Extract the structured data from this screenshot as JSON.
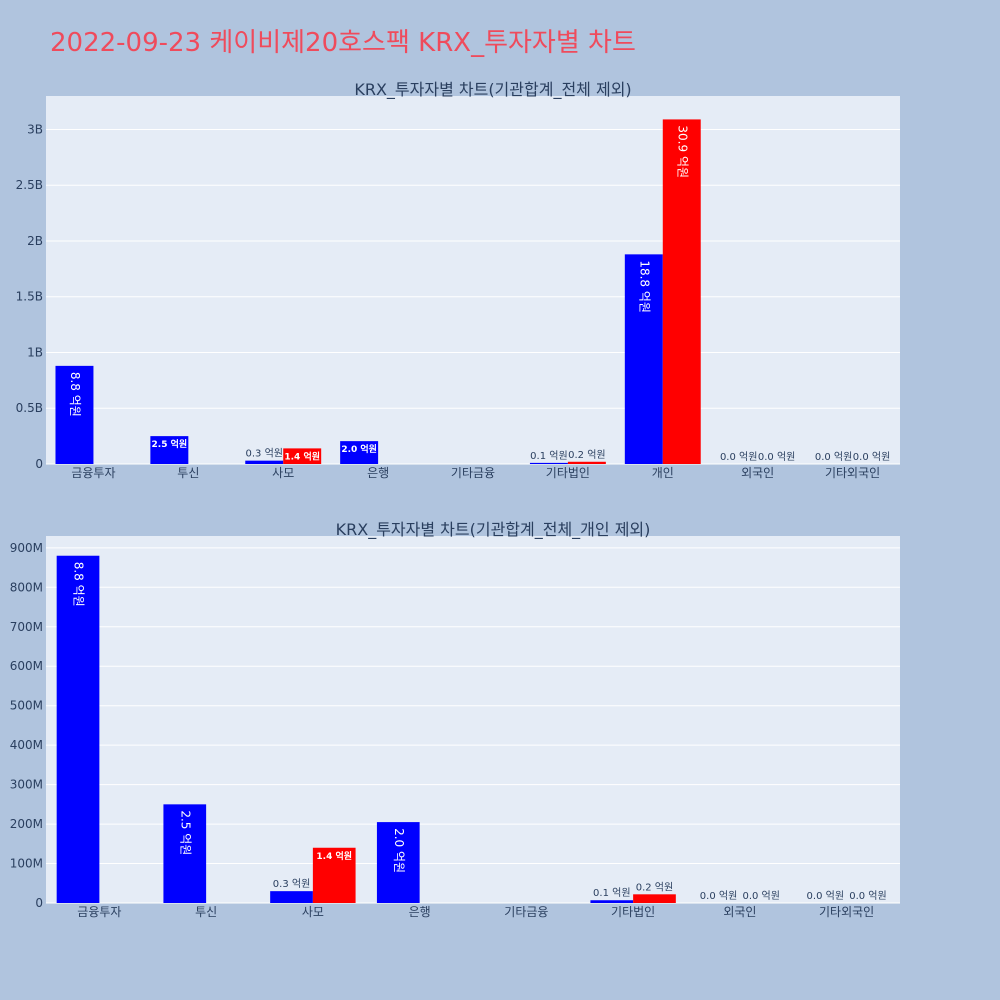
{
  "page_title": "2022-09-23 케이비제20호스팩 KRX_투자자별 차트",
  "colors": {
    "background": "#b0c4de",
    "plot_bg": "#e5ecf6",
    "grid": "#ffffff",
    "title": "#ef4b5c",
    "axis_text": "#2a3f5f",
    "series_buy": "#0000ff",
    "series_sell": "#ff0000"
  },
  "chart_data": [
    {
      "type": "bar",
      "title": "KRX_투자자별 차트(기관합계_전체 제외)",
      "categories": [
        "금융투자",
        "투신",
        "사모",
        "은행",
        "기타금융",
        "기타법인",
        "개인",
        "외국인",
        "기타외국인"
      ],
      "series": [
        {
          "color": "#0000ff",
          "values": [
            880000000,
            250000000,
            30000000,
            205000000,
            0,
            10000000,
            1880000000,
            0,
            0
          ],
          "labels": [
            "8.8 억원",
            "2.5 억원",
            "0.3 억원",
            "2.0 억원",
            "",
            "0.1 억원",
            "18.8 억원",
            "0.0 억원",
            "0.0 억원"
          ]
        },
        {
          "color": "#ff0000",
          "values": [
            0,
            0,
            140000000,
            0,
            0,
            20000000,
            3090000000,
            0,
            0
          ],
          "labels": [
            "",
            "",
            "1.4 억원",
            "",
            "",
            "0.2 억원",
            "30.9 억원",
            "0.0 억원",
            "0.0 억원"
          ]
        }
      ],
      "ylim": [
        0,
        3300000000
      ],
      "yticks": [
        0,
        500000000,
        1000000000,
        1500000000,
        2000000000,
        2500000000,
        3000000000
      ],
      "ytick_labels": [
        "0",
        "0.5B",
        "1B",
        "1.5B",
        "2B",
        "2.5B",
        "3B"
      ],
      "grid": true,
      "legend": "none"
    },
    {
      "type": "bar",
      "title": "KRX_투자자별 차트(기관합계_전체_개인 제외)",
      "categories": [
        "금융투자",
        "투신",
        "사모",
        "은행",
        "기타금융",
        "기타법인",
        "외국인",
        "기타외국인"
      ],
      "series": [
        {
          "color": "#0000ff",
          "values": [
            880000000,
            250000000,
            30000000,
            205000000,
            0,
            7000000,
            0,
            0
          ],
          "labels": [
            "8.8 억원",
            "2.5 억원",
            "0.3 억원",
            "2.0 억원",
            "",
            "0.1 억원",
            "0.0 억원",
            "0.0 억원"
          ]
        },
        {
          "color": "#ff0000",
          "values": [
            0,
            0,
            140000000,
            0,
            0,
            22000000,
            0,
            0
          ],
          "labels": [
            "",
            "",
            "1.4 억원",
            "",
            "",
            "0.2 억원",
            "0.0 억원",
            "0.0 억원"
          ]
        }
      ],
      "ylim": [
        0,
        930000000
      ],
      "yticks": [
        0,
        100000000,
        200000000,
        300000000,
        400000000,
        500000000,
        600000000,
        700000000,
        800000000,
        900000000
      ],
      "ytick_labels": [
        "0",
        "100M",
        "200M",
        "300M",
        "400M",
        "500M",
        "600M",
        "700M",
        "800M",
        "900M"
      ],
      "grid": true,
      "legend": "none"
    }
  ]
}
